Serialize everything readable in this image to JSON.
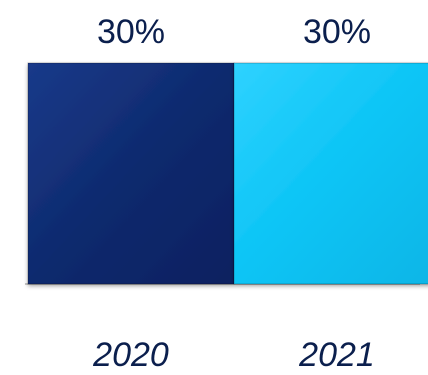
{
  "chart_data": {
    "type": "bar",
    "categories": [
      "2020",
      "2021"
    ],
    "values": [
      30,
      30
    ],
    "data_labels": [
      "30%",
      "30%"
    ],
    "colors": [
      "#0e2a6e",
      "#0bc4f5"
    ],
    "title": "",
    "xlabel": "",
    "ylabel": "",
    "ylim": [
      0,
      30
    ],
    "grid": false,
    "legend": "none"
  }
}
